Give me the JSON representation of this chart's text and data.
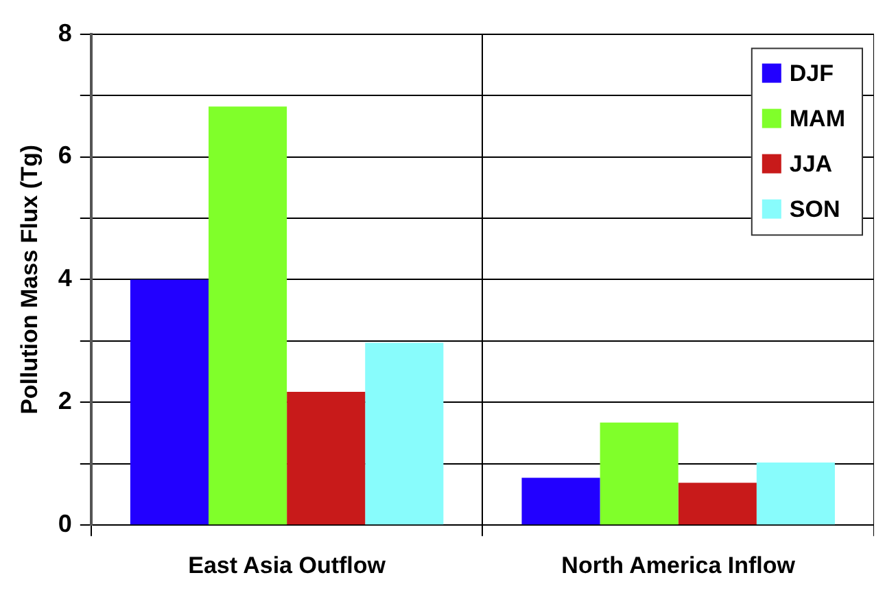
{
  "chart_data": {
    "type": "bar",
    "ylabel": "Pollution Mass Flux (Tg)",
    "categories": [
      "East Asia Outflow",
      "North America Inflow"
    ],
    "series": [
      {
        "name": "DJF",
        "color": "#2200ff",
        "values": [
          4.0,
          0.77
        ]
      },
      {
        "name": "MAM",
        "color": "#80ff2a",
        "values": [
          6.82,
          1.67
        ]
      },
      {
        "name": "JJA",
        "color": "#c81a1a",
        "values": [
          2.17,
          0.69
        ]
      },
      {
        "name": "SON",
        "color": "#88fcfc",
        "values": [
          2.97,
          1.02
        ]
      }
    ],
    "ylim": [
      0,
      8
    ],
    "yticks": [
      0,
      {
        "value": 1,
        "label": null
      },
      2,
      {
        "value": 3,
        "label": null
      },
      4,
      {
        "value": 5,
        "label": null
      },
      6,
      {
        "value": 7,
        "label": null
      },
      8
    ],
    "grid": true,
    "legend": "top right"
  }
}
